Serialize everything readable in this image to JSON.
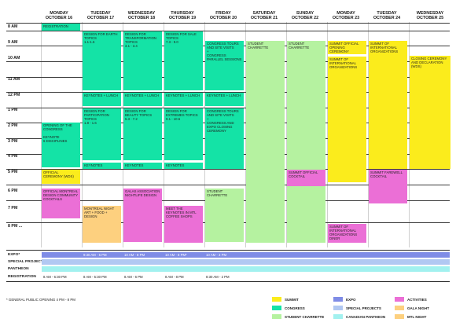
{
  "days": [
    {
      "name": "MONDAY",
      "date": "OCTOBER 16"
    },
    {
      "name": "TUESDAY",
      "date": "OCTOBER 17"
    },
    {
      "name": "WEDNESDAY",
      "date": "OCTOBER 18"
    },
    {
      "name": "THURSDAY",
      "date": "OCTOBER 19"
    },
    {
      "name": "FRIDAY",
      "date": "OCTOBER 20"
    },
    {
      "name": "SATURDAY",
      "date": "OCTOBER 21"
    },
    {
      "name": "SUNDAY",
      "date": "OCTOBER 22"
    },
    {
      "name": "MONDAY",
      "date": "OCTOBER 23"
    },
    {
      "name": "TUESDAY",
      "date": "OCTOBER 24"
    },
    {
      "name": "WEDNESDAY",
      "date": "OCTOBER 25"
    }
  ],
  "times": [
    "8 AM",
    "9 AM",
    "10 AM",
    "11 AM",
    "12 PM",
    "1 PM",
    "2 PM",
    "3 PM",
    "4 PM",
    "5 PM",
    "6 PM",
    "7 PM",
    "8 PM ..."
  ],
  "events": {
    "registration": "REGISTRATION",
    "opening": "OPENING OF THE CONGRESS\n\nKEYNOTE\n6 DISCIPLINES",
    "official_ceremony": "OFFICIAL CEREMONY (WDS)",
    "official_montreal": "OFFICIAL MONTREAL DESIGN COMMUNITY COCKTAILS",
    "earth": "DESIGN FOR EARTH TOPICS\n1.1-1.6",
    "transformation": "DESIGN FOR TRANSFORMATION TOPICS\n3.1 - 3.4",
    "sale": "DESIGN FOR SALE TOPICS\n7.3 - 9.0",
    "congress_tours_fri": "CONGRESS TOURS AND SITE VISITS\n+\nCONGRESS PARALLEL SESSIONS",
    "keynotes_lunch": "KEYNOTES + LUNCH",
    "participation": "DESIGN FOR PARTICIPATION TOPICS\n1.8 - 1.6",
    "beauty": "DESIGN FOR BEAUTY TOPICS\n5.3 - 7.2",
    "extremes": "DESIGN FOR EXTREMES TOPICS\n9.1 - 10.6",
    "congress_tours_expo": "CONGRESS TOURS AND SITE VISITS\n+\nCONGRESS AND EXPO CLOSING CEREMONY",
    "keynotes": "KEYNOTES",
    "montreal_night": "MONTREAL NIGHT\nART + FOOD + DESIGN",
    "galas": "GALAS ASSOCIATION NIGHTLIFE DESIGN",
    "meet_keynotes": "MEET THE KEYNOTES IN MTL COFFEE SHOPS",
    "student_charrette": "STUDENT CHARRETTE",
    "summit_opening": "SUMMIT OFFICIAL OPENING CEREMONY",
    "summit_intl": "SUMMIT OF INTERNATIONAL ORGANIZATIONS",
    "summit_cocktail": "SUMMIT OFFICIAL COCKTAIL",
    "summit_dinner": "SUMMIT OF INTERNATIONAL ORGANIZATIONS DINER",
    "summit_farewell": "SUMMIT FAREWELL COCKTAIL",
    "closing_wds": "CLOSING CEREMONY AND DECLARATION (WDS)"
  },
  "bottom_rows": {
    "expo_label": "EXPO*",
    "special_label": "SPECIAL PROJECTS",
    "pantheon_label": "PANTHEON",
    "registration_label": "REGISTRATION",
    "expo_times": [
      "9:30 AM - 5 PM",
      "10 AM - 8 PM",
      "10 AM - 8 PM*",
      "10 AM - 3 PM"
    ],
    "registration_times": [
      "8 AM - 6:30 PM",
      "8 AM - 5:30 PM",
      "8 AM - 6 PM",
      "8 AM - 8 PM",
      "8:30 AM - 2 PM"
    ]
  },
  "footnote": "* GENERAL PUBLIC OPENING 4 PM - 8 PM",
  "legend": [
    {
      "label": "SUMMIT",
      "color": "#fbec1c"
    },
    {
      "label": "CONGRESS",
      "color": "#14e3a6"
    },
    {
      "label": "STUDENT CHARRETTE",
      "color": "#b5f2a0"
    },
    {
      "label": "EXPO",
      "color": "#7f8ce6"
    },
    {
      "label": "SPECIAL PROJECTS",
      "color": "#b1c8f2"
    },
    {
      "label": "CANADIAN PANTHEON",
      "color": "#a2f1ef"
    },
    {
      "label": "ACTIVITIES",
      "color": "#eb6fd6"
    },
    {
      "label": "GALA NIGHT",
      "color": "#fdd07f"
    },
    {
      "label": "MTL NIGHT",
      "color": "#fdd07f"
    }
  ]
}
